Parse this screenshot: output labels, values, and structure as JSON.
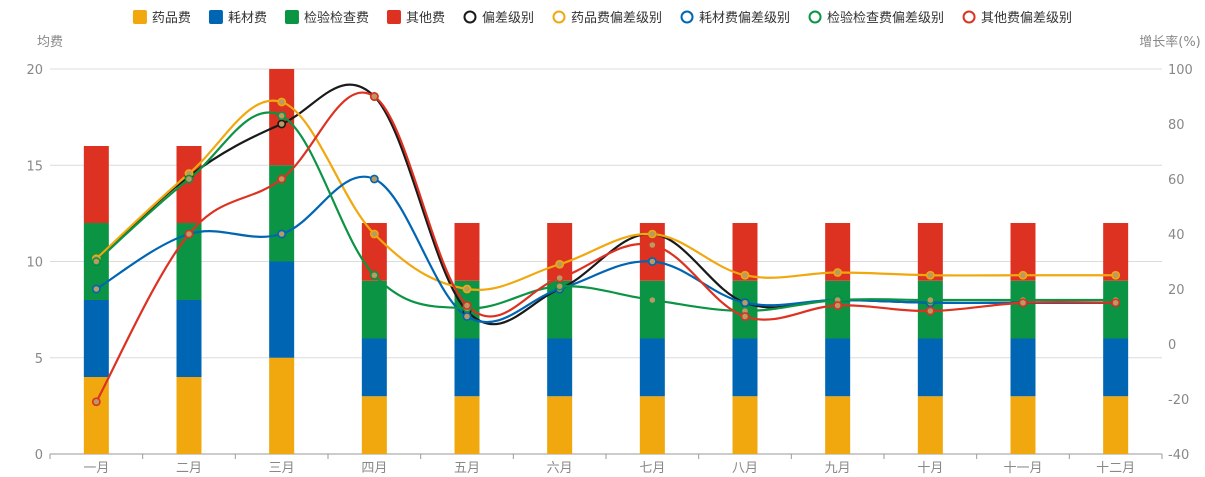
{
  "chart_data": {
    "type": "bar",
    "categories": [
      "一月",
      "二月",
      "三月",
      "四月",
      "五月",
      "六月",
      "七月",
      "八月",
      "九月",
      "十月",
      "十一月",
      "十二月"
    ],
    "left_axis": {
      "label": "均费",
      "ylim": [
        0,
        20
      ],
      "ticks": [
        0,
        5,
        10,
        15,
        20
      ]
    },
    "right_axis": {
      "label": "增长率(%)",
      "ylim": [
        -40,
        100
      ],
      "ticks": [
        -40,
        -20,
        0,
        20,
        40,
        60,
        80,
        100
      ]
    },
    "bar_series": [
      {
        "name": "药品费",
        "color": "#f0a80e",
        "values": [
          4,
          4,
          5,
          3,
          3,
          3,
          3,
          3,
          3,
          3,
          3,
          3
        ]
      },
      {
        "name": "耗材费",
        "color": "#0066b3",
        "values": [
          4,
          4,
          5,
          3,
          3,
          3,
          3,
          3,
          3,
          3,
          3,
          3
        ]
      },
      {
        "name": "检验检查费",
        "color": "#0b9444",
        "values": [
          4,
          4,
          5,
          3,
          3,
          3,
          3,
          3,
          3,
          3,
          3,
          3
        ]
      },
      {
        "name": "其他费",
        "color": "#dd3222",
        "values": [
          4,
          4,
          5,
          3,
          3,
          3,
          3,
          3,
          3,
          3,
          3,
          3
        ]
      }
    ],
    "line_series": [
      {
        "name": "偏差级别",
        "color": "#1a1a1a",
        "values": [
          30,
          61,
          80,
          90,
          12,
          20,
          40,
          15,
          16,
          15,
          15,
          15
        ]
      },
      {
        "name": "药品费偏差级别",
        "color": "#f0a80e",
        "values": [
          31,
          62,
          88,
          40,
          20,
          29,
          40,
          25,
          26,
          25,
          25,
          25
        ]
      },
      {
        "name": "耗材费偏差级别",
        "color": "#0066b3",
        "values": [
          20,
          40,
          40,
          60,
          10,
          20,
          30,
          15,
          16,
          15,
          15,
          15
        ]
      },
      {
        "name": "检验检查费偏差级别",
        "color": "#0b9444",
        "values": [
          30,
          60,
          83,
          25,
          13,
          21,
          16,
          12,
          16,
          16,
          16,
          16
        ]
      },
      {
        "name": "其他费偏差级别",
        "color": "#dd3222",
        "values": [
          -21,
          40,
          60,
          90,
          14,
          24,
          36,
          10,
          14,
          12,
          15,
          15
        ]
      }
    ],
    "legend_position": "top-center",
    "grid": true
  }
}
